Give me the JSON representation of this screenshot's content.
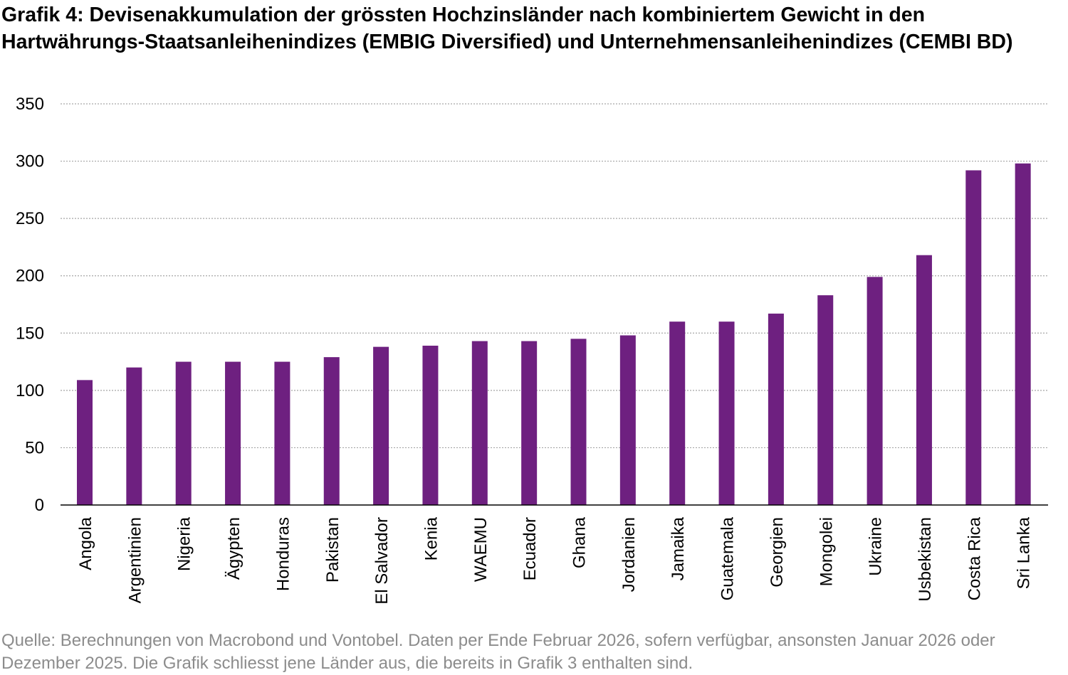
{
  "chart_data": {
    "type": "bar",
    "title": "Grafik 4: Devisenakkumulation der grössten Hochzinsländer nach kombiniertem Gewicht in den Hartwährungs-Staatsanleihenindizes (EMBIG Diversified) und Unternehmensanleihenindizes (CEMBI BD)",
    "xlabel": "",
    "ylabel": "",
    "ylim": [
      0,
      350
    ],
    "yticks": [
      0,
      50,
      100,
      150,
      200,
      250,
      300,
      350
    ],
    "grid": "horizontal dotted",
    "legend": "none",
    "bar_color": "#6e2080",
    "categories": [
      "Angola",
      "Argentinien",
      "Nigeria",
      "Ägypten",
      "Honduras",
      "Pakistan",
      "El Salvador",
      "Kenia",
      "WAEMU",
      "Ecuador",
      "Ghana",
      "Jordanien",
      "Jamaika",
      "Guatemala",
      "Georgien",
      "Mongolei",
      "Ukraine",
      "Usbekistan",
      "Costa Rica",
      "Sri Lanka"
    ],
    "values": [
      109,
      120,
      125,
      125,
      125,
      129,
      138,
      139,
      143,
      143,
      145,
      148,
      160,
      160,
      167,
      183,
      199,
      218,
      292,
      298
    ]
  },
  "source": "Quelle: Berechnungen von Macrobond und Vontobel. Daten per Ende Februar 2026, sofern verfügbar, ansonsten Januar 2026 oder Dezember 2025. Die Grafik schliesst jene Länder aus, die bereits in Grafik 3 enthalten sind."
}
